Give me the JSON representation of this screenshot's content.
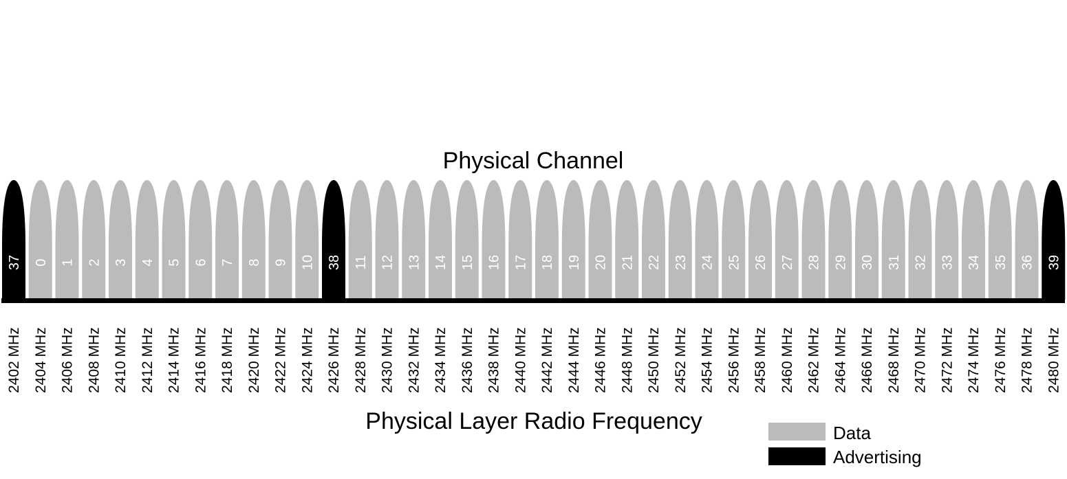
{
  "top_label": "Physical Channel",
  "bottom_label": "Physical Layer Radio Frequency",
  "colors": {
    "data": "#bbbbbb",
    "advertising": "#000000",
    "baseline": "#000000"
  },
  "legend": [
    {
      "type": "data",
      "label": "Data"
    },
    {
      "type": "advertising",
      "label": "Advertising"
    }
  ],
  "channels": [
    {
      "channel": "37",
      "freq": "2402 MHz",
      "type": "advertising"
    },
    {
      "channel": "0",
      "freq": "2404 MHz",
      "type": "data"
    },
    {
      "channel": "1",
      "freq": "2406 MHz",
      "type": "data"
    },
    {
      "channel": "2",
      "freq": "2408 MHz",
      "type": "data"
    },
    {
      "channel": "3",
      "freq": "2410 MHz",
      "type": "data"
    },
    {
      "channel": "4",
      "freq": "2412 MHz",
      "type": "data"
    },
    {
      "channel": "5",
      "freq": "2414 MHz",
      "type": "data"
    },
    {
      "channel": "6",
      "freq": "2416 MHz",
      "type": "data"
    },
    {
      "channel": "7",
      "freq": "2418 MHz",
      "type": "data"
    },
    {
      "channel": "8",
      "freq": "2420 MHz",
      "type": "data"
    },
    {
      "channel": "9",
      "freq": "2422 MHz",
      "type": "data"
    },
    {
      "channel": "10",
      "freq": "2424 MHz",
      "type": "data"
    },
    {
      "channel": "38",
      "freq": "2426 MHz",
      "type": "advertising"
    },
    {
      "channel": "11",
      "freq": "2428 MHz",
      "type": "data"
    },
    {
      "channel": "12",
      "freq": "2430 MHz",
      "type": "data"
    },
    {
      "channel": "13",
      "freq": "2432 MHz",
      "type": "data"
    },
    {
      "channel": "14",
      "freq": "2434 MHz",
      "type": "data"
    },
    {
      "channel": "15",
      "freq": "2436 MHz",
      "type": "data"
    },
    {
      "channel": "16",
      "freq": "2438 MHz",
      "type": "data"
    },
    {
      "channel": "17",
      "freq": "2440 MHz",
      "type": "data"
    },
    {
      "channel": "18",
      "freq": "2442 MHz",
      "type": "data"
    },
    {
      "channel": "19",
      "freq": "2444 MHz",
      "type": "data"
    },
    {
      "channel": "20",
      "freq": "2446 MHz",
      "type": "data"
    },
    {
      "channel": "21",
      "freq": "2448 MHz",
      "type": "data"
    },
    {
      "channel": "22",
      "freq": "2450 MHz",
      "type": "data"
    },
    {
      "channel": "23",
      "freq": "2452 MHz",
      "type": "data"
    },
    {
      "channel": "24",
      "freq": "2454 MHz",
      "type": "data"
    },
    {
      "channel": "25",
      "freq": "2456 MHz",
      "type": "data"
    },
    {
      "channel": "26",
      "freq": "2458 MHz",
      "type": "data"
    },
    {
      "channel": "27",
      "freq": "2460 MHz",
      "type": "data"
    },
    {
      "channel": "28",
      "freq": "2462 MHz",
      "type": "data"
    },
    {
      "channel": "29",
      "freq": "2464 MHz",
      "type": "data"
    },
    {
      "channel": "30",
      "freq": "2466 MHz",
      "type": "data"
    },
    {
      "channel": "31",
      "freq": "2468 MHz",
      "type": "data"
    },
    {
      "channel": "32",
      "freq": "2470 MHz",
      "type": "data"
    },
    {
      "channel": "33",
      "freq": "2472 MHz",
      "type": "data"
    },
    {
      "channel": "34",
      "freq": "2474 MHz",
      "type": "data"
    },
    {
      "channel": "35",
      "freq": "2476 MHz",
      "type": "data"
    },
    {
      "channel": "36",
      "freq": "2478 MHz",
      "type": "data"
    },
    {
      "channel": "39",
      "freq": "2480 MHz",
      "type": "advertising"
    }
  ]
}
